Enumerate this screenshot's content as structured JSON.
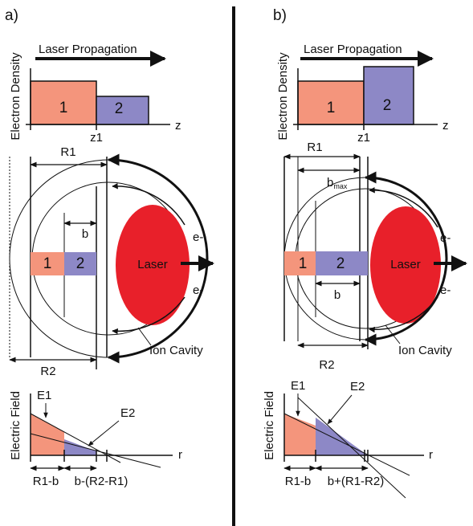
{
  "panels": [
    {
      "label": "a)",
      "density": {
        "title": "Laser Propagation",
        "y_axis": "Electron Density",
        "region1": "1",
        "region2": "2",
        "z1": "z1",
        "x_axis": "z"
      },
      "cavity": {
        "r1": "R1",
        "b": "b",
        "region1": "1",
        "region2": "2",
        "laser": "Laser",
        "electron_top": "e-",
        "electron_bottom": "e-",
        "ion_cavity": "Ion Cavity",
        "r2": "R2"
      },
      "field": {
        "y_axis": "Electric Field",
        "e1": "E1",
        "e2": "E2",
        "x_axis": "r",
        "segment1": "R1-b",
        "segment2": "b-(R2-R1)"
      }
    },
    {
      "label": "b)",
      "density": {
        "title": "Laser Propagation",
        "y_axis": "Electron Density",
        "region1": "1",
        "region2": "2",
        "z1": "z1",
        "x_axis": "z"
      },
      "cavity": {
        "r1": "R1",
        "b_max": {
          "base": "b",
          "sub": "max"
        },
        "b": "b",
        "region1": "1",
        "region2": "2",
        "laser": "Laser",
        "electron_top": "e-",
        "electron_bottom": "e-",
        "ion_cavity": "Ion Cavity",
        "r2": "R2"
      },
      "field": {
        "y_axis": "Electric Field",
        "e1": "E1",
        "e2": "E2",
        "x_axis": "r",
        "segment1": "R1-b",
        "segment2": "b+(R1-R2)"
      }
    }
  ]
}
